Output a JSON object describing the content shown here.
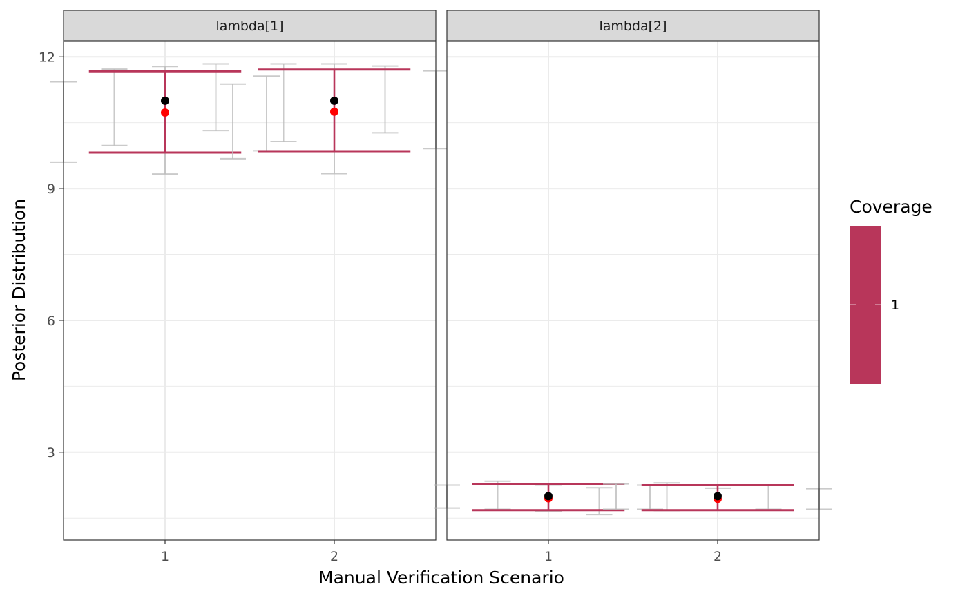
{
  "chart_data": {
    "type": "errorbar",
    "xlabel": "Manual Verification Scenario",
    "ylabel": "Posterior Distribution",
    "ylim": [
      1.0,
      12.35
    ],
    "y_ticks": [
      3,
      6,
      9,
      12
    ],
    "x_categories": [
      "1",
      "2"
    ],
    "grid": true,
    "legend": {
      "title": "Coverage",
      "position": "right",
      "entries": [
        {
          "label": "1",
          "color": "#b8365a"
        }
      ]
    },
    "colors": {
      "coverage": "#b8365a",
      "replicate": "#bdbdbd",
      "mean_point": "#000000",
      "truth_point": "#ff0000"
    },
    "panels": [
      {
        "strip": "lambda[1]",
        "groups": [
          {
            "x": "1",
            "coverage_interval": {
              "lower": 9.82,
              "upper": 11.67
            },
            "black_point": 11.0,
            "red_point": 10.73,
            "replicates": [
              {
                "offset": -0.6,
                "lower": 9.6,
                "upper": 11.43
              },
              {
                "offset": -0.3,
                "lower": 9.98,
                "upper": 11.72
              },
              {
                "offset": 0.0,
                "lower": 9.33,
                "upper": 11.78
              },
              {
                "offset": 0.3,
                "lower": 10.32,
                "upper": 11.84
              },
              {
                "offset": 0.6,
                "lower": 9.86,
                "upper": 11.56
              }
            ]
          },
          {
            "x": "2",
            "coverage_interval": {
              "lower": 9.85,
              "upper": 11.71
            },
            "black_point": 11.0,
            "red_point": 10.75,
            "replicates": [
              {
                "offset": -0.6,
                "lower": 9.68,
                "upper": 11.38
              },
              {
                "offset": -0.3,
                "lower": 10.07,
                "upper": 11.84
              },
              {
                "offset": 0.0,
                "lower": 9.34,
                "upper": 11.84
              },
              {
                "offset": 0.3,
                "lower": 10.27,
                "upper": 11.79
              },
              {
                "offset": 0.6,
                "lower": 9.91,
                "upper": 11.68
              }
            ]
          }
        ]
      },
      {
        "strip": "lambda[2]",
        "groups": [
          {
            "x": "1",
            "coverage_interval": {
              "lower": 1.68,
              "upper": 2.27
            },
            "black_point": 2.0,
            "red_point": 1.95,
            "replicates": [
              {
                "offset": -0.6,
                "lower": 1.73,
                "upper": 2.25
              },
              {
                "offset": -0.3,
                "lower": 1.7,
                "upper": 2.34
              },
              {
                "offset": 0.0,
                "lower": 1.66,
                "upper": 2.25
              },
              {
                "offset": 0.3,
                "lower": 1.58,
                "upper": 2.19
              },
              {
                "offset": 0.6,
                "lower": 1.7,
                "upper": 2.25
              }
            ]
          },
          {
            "x": "2",
            "coverage_interval": {
              "lower": 1.68,
              "upper": 2.25
            },
            "black_point": 2.0,
            "red_point": 1.94,
            "replicates": [
              {
                "offset": -0.6,
                "lower": 1.7,
                "upper": 2.28
              },
              {
                "offset": -0.3,
                "lower": 1.67,
                "upper": 2.3
              },
              {
                "offset": 0.0,
                "lower": 1.68,
                "upper": 2.18
              },
              {
                "offset": 0.3,
                "lower": 1.7,
                "upper": 2.25
              },
              {
                "offset": 0.6,
                "lower": 1.7,
                "upper": 2.17
              }
            ]
          }
        ]
      }
    ]
  }
}
